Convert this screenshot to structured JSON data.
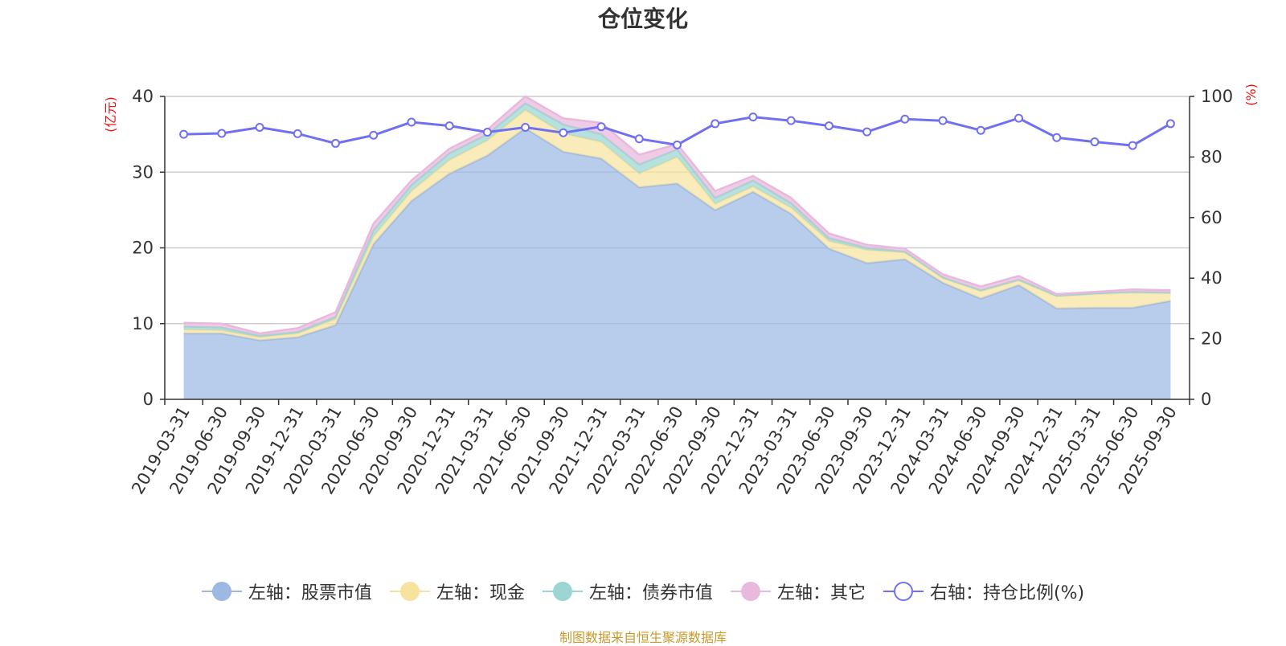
{
  "title": "仓位变化",
  "source_note": "制图数据来自恒生聚源数据库",
  "chart_data": {
    "type": "area",
    "stacked": true,
    "categories": [
      "2019-03-31",
      "2019-06-30",
      "2019-09-30",
      "2019-12-31",
      "2020-03-31",
      "2020-06-30",
      "2020-09-30",
      "2020-12-31",
      "2021-03-31",
      "2021-06-30",
      "2021-09-30",
      "2021-12-31",
      "2022-03-31",
      "2022-06-30",
      "2022-09-30",
      "2022-12-31",
      "2023-03-31",
      "2023-06-30",
      "2023-09-30",
      "2023-12-31",
      "2024-03-31",
      "2024-06-30",
      "2024-09-30",
      "2024-12-31",
      "2025-03-31",
      "2025-06-30",
      "2025-09-30"
    ],
    "left_axis": {
      "label": "(亿元)",
      "ylim": [
        0,
        40
      ],
      "ticks": [
        0,
        10,
        20,
        30,
        40
      ]
    },
    "right_axis": {
      "label": "(%)",
      "ylim": [
        0,
        100
      ],
      "ticks": [
        0,
        20,
        40,
        60,
        80,
        100
      ]
    },
    "grid": true,
    "series": [
      {
        "name": "左轴：股票市值",
        "axis": "left",
        "color": "#9db8e3",
        "values": [
          8.7,
          8.7,
          7.8,
          8.2,
          9.8,
          20.5,
          26.2,
          29.8,
          32.2,
          35.8,
          32.7,
          31.8,
          28.0,
          28.5,
          25.0,
          27.4,
          24.5,
          19.9,
          18.0,
          18.5,
          15.4,
          13.3,
          15.1,
          12.0,
          12.1,
          12.1,
          13.0
        ]
      },
      {
        "name": "左轴：现金",
        "axis": "left",
        "color": "#f7e3a0",
        "values": [
          0.5,
          0.4,
          0.4,
          0.5,
          0.8,
          1.0,
          1.3,
          1.8,
          2.0,
          2.4,
          2.4,
          2.2,
          1.8,
          3.5,
          0.8,
          0.7,
          0.8,
          1.0,
          1.7,
          0.9,
          0.6,
          1.0,
          0.6,
          1.6,
          1.8,
          2.0,
          1.0
        ]
      },
      {
        "name": "左轴：债券市值",
        "axis": "left",
        "color": "#9bd6d2",
        "values": [
          0.4,
          0.4,
          0.2,
          0.2,
          0.3,
          0.8,
          0.8,
          0.9,
          0.8,
          0.9,
          1.2,
          1.0,
          1.2,
          1.0,
          0.8,
          0.8,
          0.6,
          0.4,
          0.3,
          0.1,
          0.1,
          0.1,
          0.1,
          0.1,
          0.1,
          0.1,
          0.1
        ]
      },
      {
        "name": "左轴：其它",
        "axis": "left",
        "color": "#e8b9dc",
        "values": [
          0.5,
          0.5,
          0.3,
          0.5,
          0.6,
          0.9,
          0.6,
          0.6,
          0.6,
          0.9,
          0.8,
          1.5,
          1.3,
          0.7,
          0.9,
          0.6,
          0.7,
          0.6,
          0.4,
          0.4,
          0.4,
          0.5,
          0.5,
          0.2,
          0.2,
          0.3,
          0.3
        ]
      },
      {
        "name": "右轴：持仓比例(%)",
        "axis": "right",
        "type": "line",
        "color": "#7070f0",
        "values": [
          87.5,
          87.8,
          89.8,
          87.7,
          84.5,
          87.2,
          91.5,
          90.3,
          88.2,
          89.8,
          88.0,
          90.0,
          86.0,
          84.0,
          91.0,
          93.2,
          92.0,
          90.3,
          88.3,
          92.5,
          92.0,
          88.8,
          92.8,
          86.4,
          85.0,
          83.8,
          91.0
        ]
      }
    ]
  }
}
